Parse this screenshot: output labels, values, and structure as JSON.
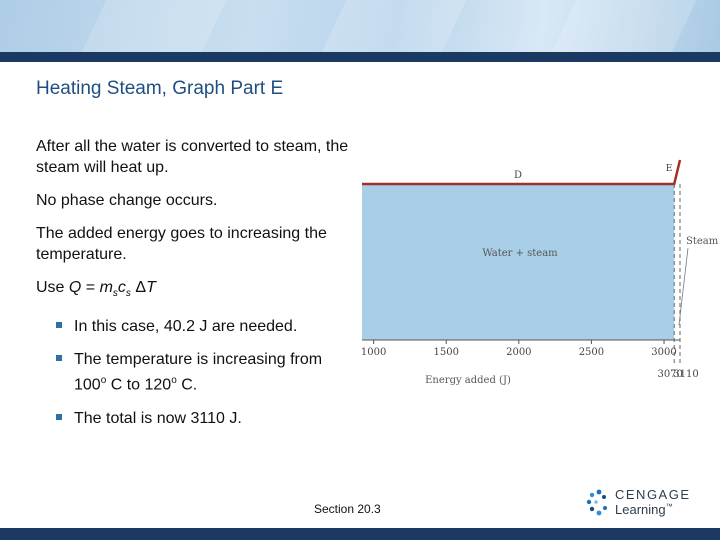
{
  "slide": {
    "title": "Heating Steam, Graph Part E",
    "paragraphs": [
      "After all the water is converted to steam, the steam will heat up.",
      "No phase change occurs.",
      "The added energy goes to increasing the temperature."
    ],
    "formula": {
      "prefix": "Use ",
      "Q": "Q",
      "eq": " = ",
      "m": "m",
      "m_sub": "s",
      "c": "c",
      "c_sub": "s",
      "delta": " Δ",
      "T": "T"
    },
    "bullets": {
      "b1": "In this case, 40.2 J are needed.",
      "b2_pre": "The temperature is increasing from 100",
      "b2_sup1": "o",
      "b2_mid": " C to 120",
      "b2_sup2": "o",
      "b2_post": " C.",
      "b3": "The total is now 3110 J."
    },
    "footer": {
      "section": "Section  20.3",
      "logo_word1": "CENGAGE",
      "logo_word2": "Learning",
      "logo_tm": "™"
    }
  },
  "chart_data": {
    "type": "line",
    "xlabel": "Energy added (J)",
    "x_ticks": [
      1000,
      1500,
      2000,
      2500,
      3000
    ],
    "x_ticks_extra": [
      3070,
      3110
    ],
    "xlim": [
      920,
      3110
    ],
    "labels": {
      "region_d": "D",
      "region_e": "E",
      "fill_label": "Water + steam",
      "steam_label": "Steam"
    },
    "series": [
      {
        "x": [
          920,
          3070,
          3110
        ],
        "y": [
          100,
          100,
          120
        ]
      }
    ],
    "colors": {
      "fill": "#a9cfe8",
      "line": "#a0302a",
      "axis": "#555555"
    }
  }
}
